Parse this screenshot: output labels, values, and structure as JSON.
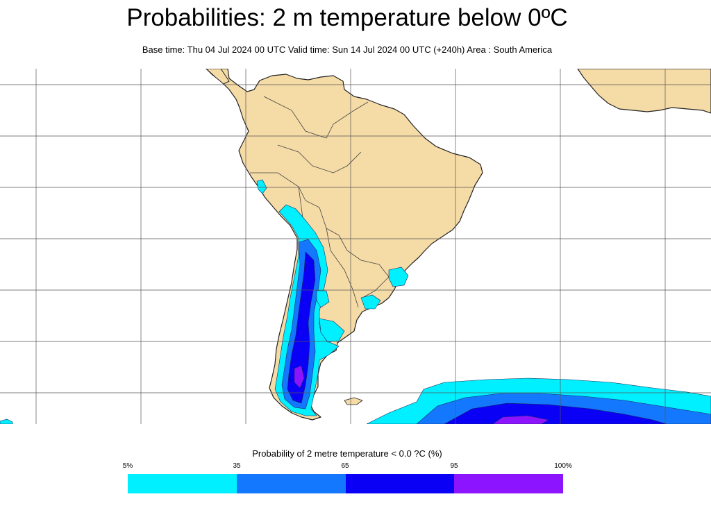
{
  "title": "Probabilities: 2 m temperature below 0ºC",
  "subtitle": "Base time: Thu 04 Jul 2024 00 UTC Valid time: Sun 14 Jul 2024 00 UTC (+240h) Area : South America",
  "legend": {
    "title": "Probability of 2 metre temperature < 0.0 ?C (%)",
    "ticks": [
      "5%",
      "35",
      "65",
      "95",
      "100%"
    ],
    "colors": [
      "#00f0ff",
      "#1478ff",
      "#0a00f5",
      "#8c14ff"
    ]
  },
  "colors": {
    "land": "#f5dba6",
    "coast": "#222222",
    "grid": "#555555",
    "ocean": "#ffffff"
  }
}
